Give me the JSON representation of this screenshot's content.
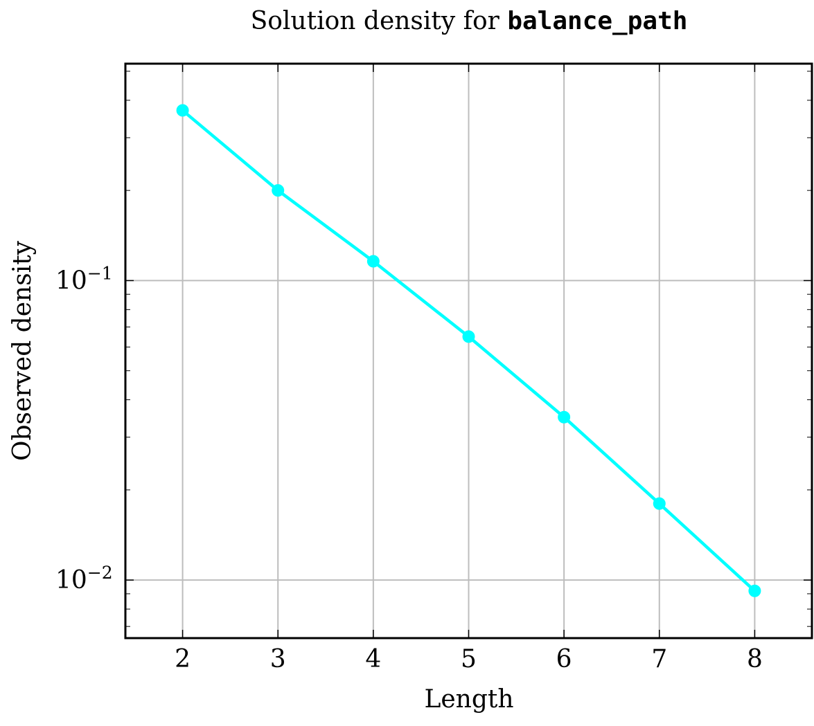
{
  "chart_data": {
    "type": "line",
    "title": {
      "prefix": "Solution density for ",
      "code": "balance_path"
    },
    "xlabel": "Length",
    "ylabel": "Observed density",
    "y_scale": "log",
    "xlim": [
      1.4,
      8.6
    ],
    "ylim": [
      0.0064,
      0.53
    ],
    "grid": true,
    "x_ticks": [
      2,
      3,
      4,
      5,
      6,
      7,
      8
    ],
    "x_tick_labels": [
      "2",
      "3",
      "4",
      "5",
      "6",
      "7",
      "8"
    ],
    "y_major_ticks": [
      {
        "value": 0.1,
        "base": "10",
        "exp": "−1"
      },
      {
        "value": 0.01,
        "base": "10",
        "exp": "−2"
      }
    ],
    "series": [
      {
        "color": "#00ffff",
        "marker": "circle",
        "x": [
          2,
          3,
          4,
          5,
          6,
          7,
          8
        ],
        "y": [
          0.37,
          0.2,
          0.116,
          0.065,
          0.035,
          0.018,
          0.0092
        ]
      }
    ]
  }
}
